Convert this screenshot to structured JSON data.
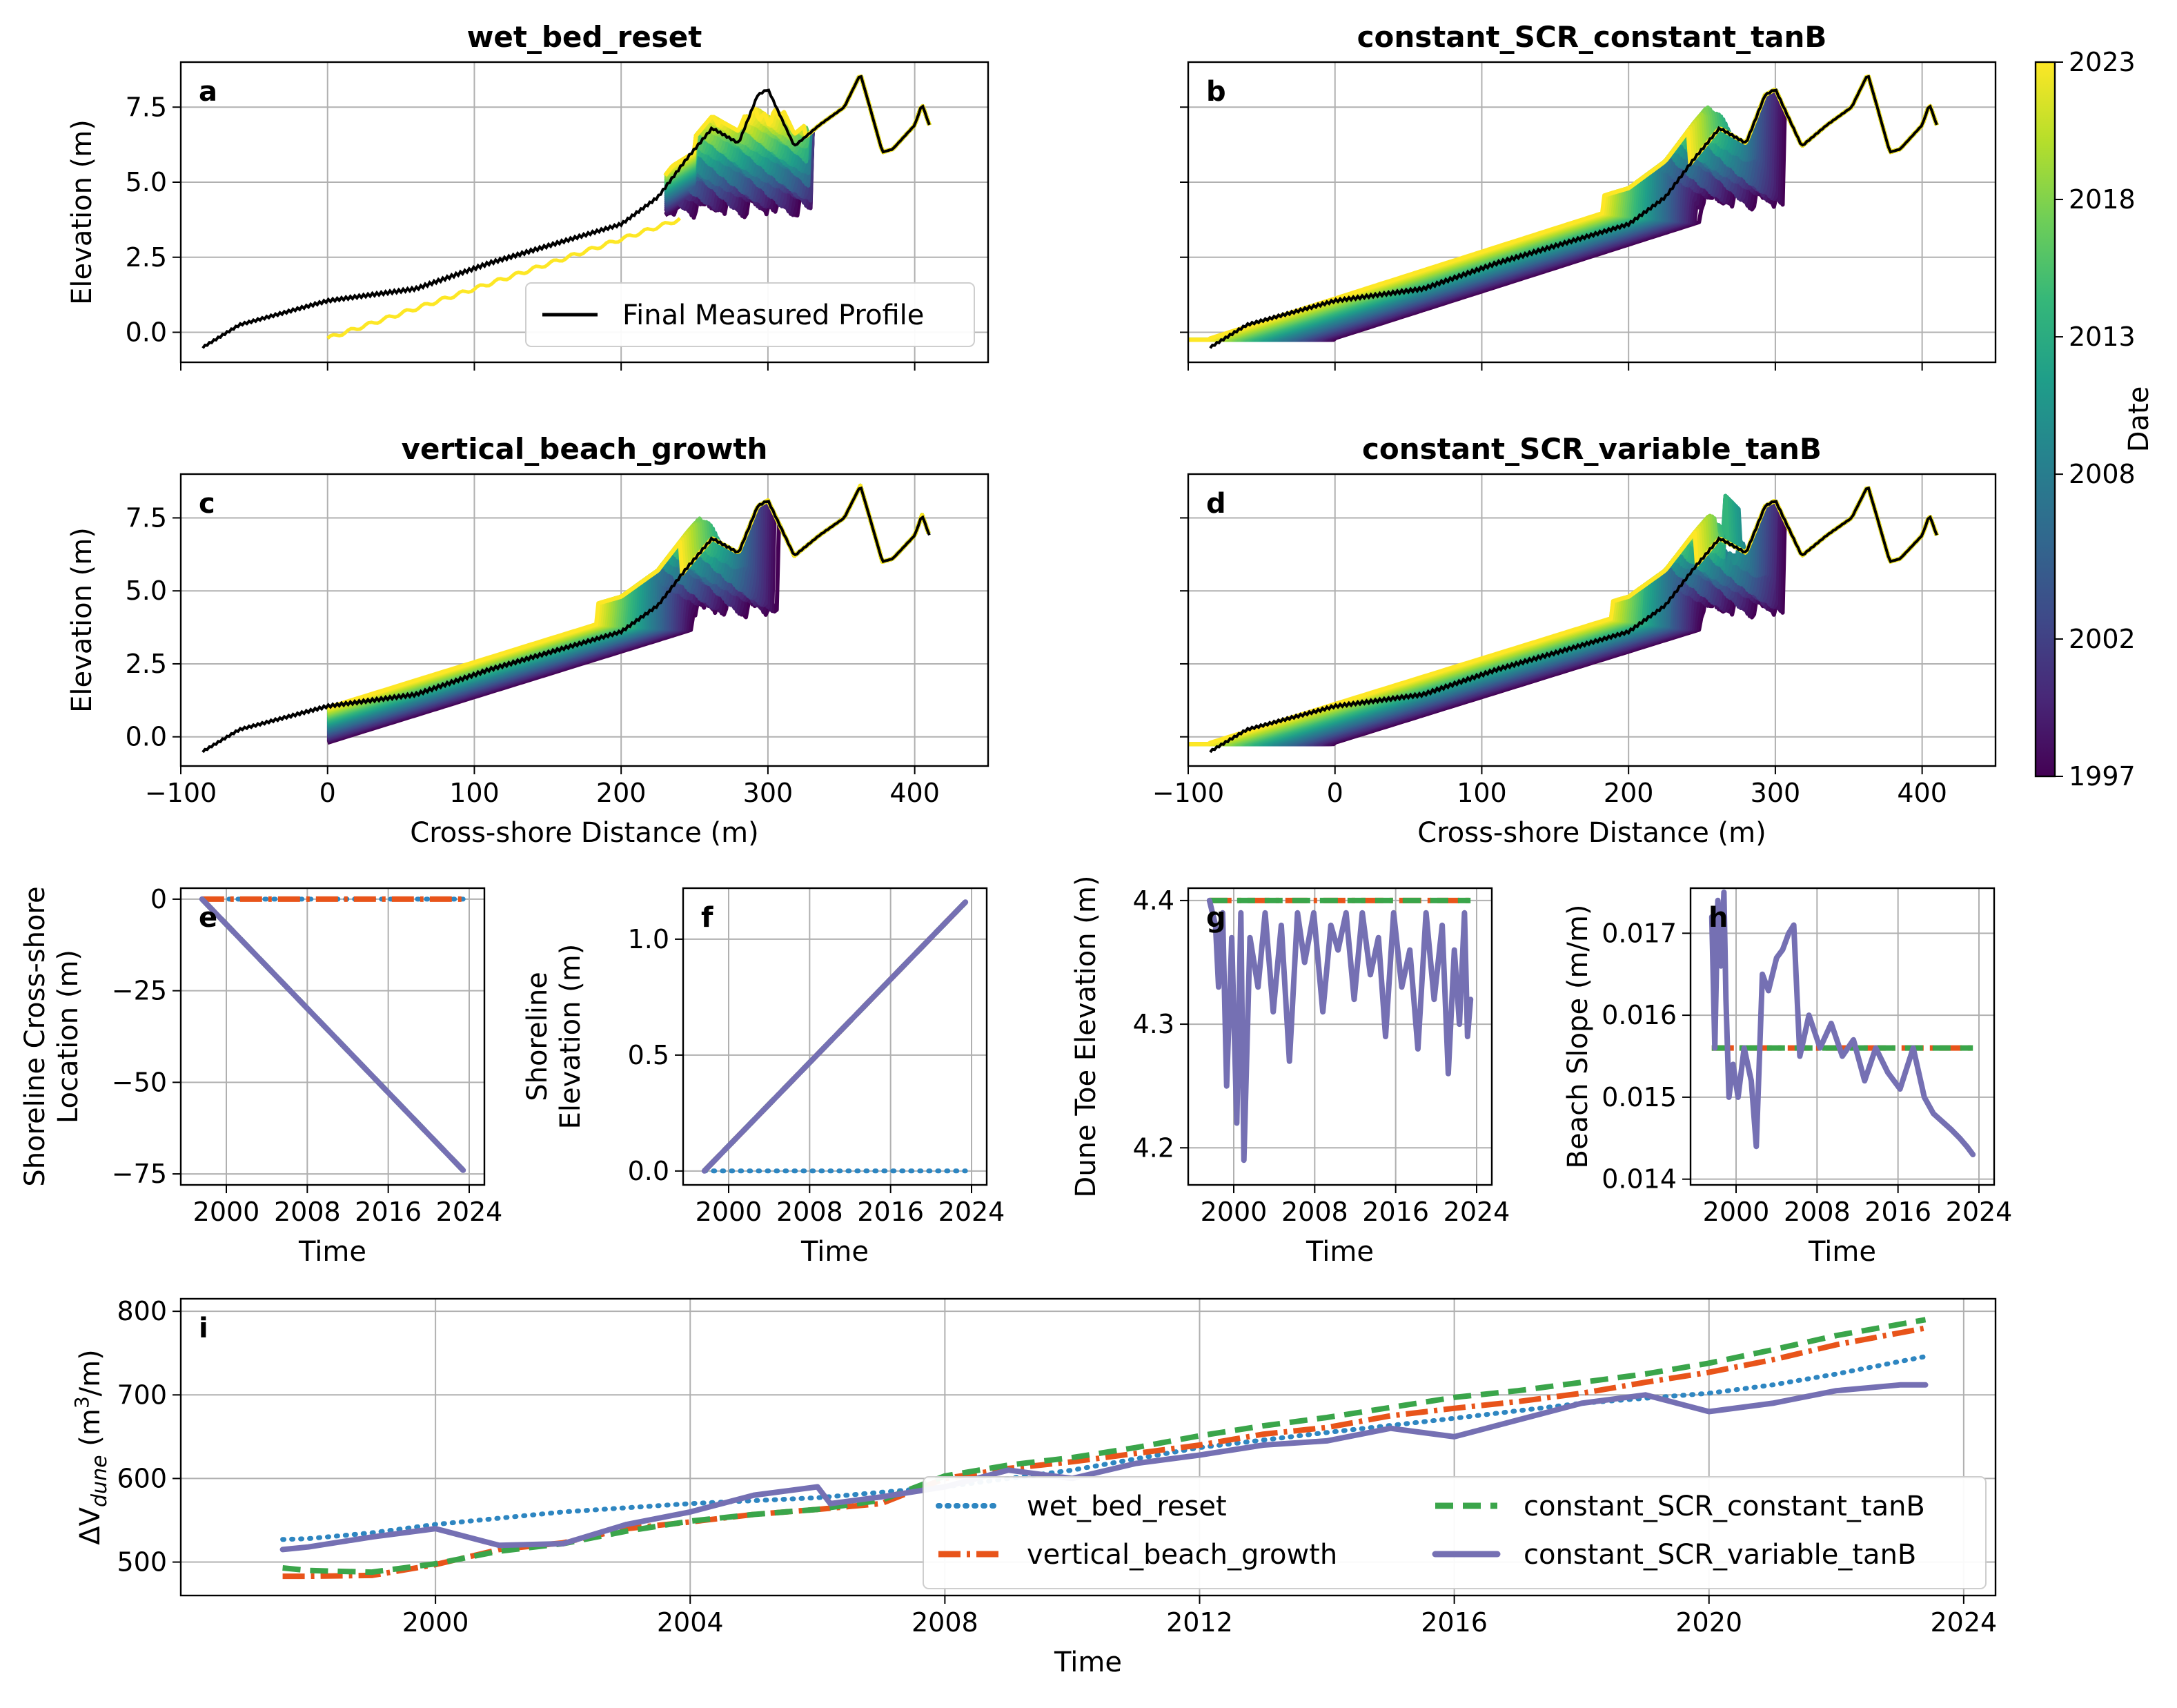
{
  "colors": {
    "wet_bed_reset": "#2e86c1",
    "vertical_beach_growth": "#e8541a",
    "constant_SCR_constant_tanB": "#3aa54a",
    "constant_SCR_variable_tanB": "#7570b3",
    "measured": "#000000",
    "viridis": [
      "#440154",
      "#482878",
      "#3e4a89",
      "#31688e",
      "#26828e",
      "#1f9e89",
      "#35b779",
      "#6ece58",
      "#b5de2b",
      "#fde725"
    ]
  },
  "colorbar": {
    "label": "Date",
    "ticks": [
      "1997",
      "2002",
      "2008",
      "2013",
      "2018",
      "2023"
    ],
    "vmin": 1997,
    "vmax": 2023
  },
  "chart_data": [
    {
      "id": "a",
      "panel_label": "a",
      "title": "wet_bed_reset",
      "type": "line",
      "xlabel": "",
      "ylabel": "Elevation (m)",
      "xlim": [
        -100,
        450
      ],
      "ylim": [
        -1.0,
        9.0
      ],
      "xticks": [
        -100,
        0,
        100,
        200,
        300,
        400
      ],
      "yticks": [
        0.0,
        2.5,
        5.0,
        7.5
      ],
      "yticklabels": [
        "0.0",
        "2.5",
        "5.0",
        "7.5"
      ],
      "show_xticklabels": false,
      "legend": [
        "Final Measured Profile"
      ],
      "legend_position": "lower right",
      "envelope": {
        "type": "wet_bed_reset"
      }
    },
    {
      "id": "b",
      "panel_label": "b",
      "title": "constant_SCR_constant_tanB",
      "type": "line",
      "xlabel": "",
      "ylabel": "",
      "xlim": [
        -100,
        450
      ],
      "ylim": [
        -1.0,
        9.0
      ],
      "xticks": [
        -100,
        0,
        100,
        200,
        300,
        400
      ],
      "yticks": [
        0.0,
        2.5,
        5.0,
        7.5
      ],
      "show_xticklabels": false,
      "show_yticklabels": false,
      "envelope": {
        "type": "constant_SCR"
      }
    },
    {
      "id": "c",
      "panel_label": "c",
      "title": "vertical_beach_growth",
      "type": "line",
      "xlabel": "Cross-shore Distance (m)",
      "ylabel": "Elevation (m)",
      "xlim": [
        -100,
        450
      ],
      "ylim": [
        -1.0,
        9.0
      ],
      "xticks": [
        -100,
        0,
        100,
        200,
        300,
        400
      ],
      "xticklabels": [
        "−100",
        "0",
        "100",
        "200",
        "300",
        "400"
      ],
      "yticks": [
        0.0,
        2.5,
        5.0,
        7.5
      ],
      "yticklabels": [
        "0.0",
        "2.5",
        "5.0",
        "7.5"
      ],
      "envelope": {
        "type": "vertical_growth"
      }
    },
    {
      "id": "d",
      "panel_label": "d",
      "title": "constant_SCR_variable_tanB",
      "type": "line",
      "xlabel": "Cross-shore Distance (m)",
      "ylabel": "",
      "xlim": [
        -100,
        450
      ],
      "ylim": [
        -1.0,
        9.0
      ],
      "xticks": [
        -100,
        0,
        100,
        200,
        300,
        400
      ],
      "xticklabels": [
        "−100",
        "0",
        "100",
        "200",
        "300",
        "400"
      ],
      "yticks": [
        0.0,
        2.5,
        5.0,
        7.5
      ],
      "show_yticklabels": false,
      "envelope": {
        "type": "constant_SCR_var"
      }
    },
    {
      "id": "e",
      "panel_label": "e",
      "type": "line",
      "xlabel": "Time",
      "ylabel": "Shoreline Cross-shore\nLocation (m)",
      "xlim": [
        1995.5,
        2025.5
      ],
      "ylim": [
        -78,
        3
      ],
      "xticks": [
        2000,
        2008,
        2016,
        2024
      ],
      "xticklabels": [
        "2000",
        "2008",
        "2016",
        "2024"
      ],
      "yticks": [
        0,
        -25,
        -50,
        -75
      ],
      "yticklabels": [
        "0",
        "−25",
        "−50",
        "−75"
      ],
      "series": [
        {
          "key": "wet_bed_reset",
          "x": [
            1997.6,
            2023.4
          ],
          "y": [
            0,
            0
          ]
        },
        {
          "key": "vertical_beach_growth",
          "x": [
            1997.6,
            2023.4
          ],
          "y": [
            0,
            0
          ]
        },
        {
          "key": "constant_SCR_constant_tanB",
          "x": [
            1997.6,
            2023.4
          ],
          "y": [
            0,
            -74
          ]
        },
        {
          "key": "constant_SCR_variable_tanB",
          "x": [
            1997.6,
            2023.4
          ],
          "y": [
            0,
            -74
          ]
        }
      ]
    },
    {
      "id": "f",
      "panel_label": "f",
      "type": "line",
      "xlabel": "Time",
      "ylabel": "Shoreline\nElevation (m)",
      "xlim": [
        1995.5,
        2025.5
      ],
      "ylim": [
        -0.06,
        1.22
      ],
      "xticks": [
        2000,
        2008,
        2016,
        2024
      ],
      "xticklabels": [
        "2000",
        "2008",
        "2016",
        "2024"
      ],
      "yticks": [
        0.0,
        0.5,
        1.0
      ],
      "yticklabels": [
        "0.0",
        "0.5",
        "1.0"
      ],
      "series": [
        {
          "key": "wet_bed_reset",
          "x": [
            1997.6,
            2023.4
          ],
          "y": [
            0,
            0
          ]
        },
        {
          "key": "vertical_beach_growth",
          "x": [
            1997.6,
            2023.4
          ],
          "y": [
            0,
            1.16
          ]
        },
        {
          "key": "constant_SCR_constant_tanB",
          "x": [
            1997.6,
            2023.4
          ],
          "y": [
            0,
            1.16
          ]
        },
        {
          "key": "constant_SCR_variable_tanB",
          "x": [
            1997.6,
            2023.4
          ],
          "y": [
            0,
            1.16
          ]
        }
      ]
    },
    {
      "id": "g",
      "panel_label": "g",
      "type": "line",
      "xlabel": "Time",
      "ylabel": "Dune Toe Elevation (m)",
      "xlim": [
        1995.5,
        2025.5
      ],
      "ylim": [
        4.17,
        4.41
      ],
      "xticks": [
        2000,
        2008,
        2016,
        2024
      ],
      "xticklabels": [
        "2000",
        "2008",
        "2016",
        "2024"
      ],
      "yticks": [
        4.2,
        4.3,
        4.4
      ],
      "yticklabels": [
        "4.2",
        "4.3",
        "4.4"
      ],
      "series": [
        {
          "key": "vertical_beach_growth",
          "x": [
            1997.6,
            2023.4
          ],
          "y": [
            4.4,
            4.4
          ]
        },
        {
          "key": "constant_SCR_constant_tanB",
          "x": [
            1997.6,
            2023.4
          ],
          "y": [
            4.4,
            4.4
          ]
        },
        {
          "key": "constant_SCR_variable_tanB",
          "x": [
            1997.6,
            1998.2,
            1998.5,
            1998.9,
            1999.3,
            1999.8,
            2000.3,
            2000.7,
            2001.0,
            2001.6,
            2002.4,
            2003.1,
            2003.9,
            2004.7,
            2005.5,
            2006.3,
            2007.0,
            2007.9,
            2008.8,
            2009.6,
            2010.3,
            2011.1,
            2011.9,
            2012.7,
            2013.5,
            2014.3,
            2015.0,
            2015.8,
            2016.6,
            2017.4,
            2018.2,
            2019.0,
            2019.8,
            2020.6,
            2021.2,
            2021.8,
            2022.3,
            2022.8,
            2023.1,
            2023.4
          ],
          "y": [
            4.4,
            4.38,
            4.33,
            4.39,
            4.25,
            4.37,
            4.22,
            4.39,
            4.19,
            4.37,
            4.33,
            4.39,
            4.31,
            4.38,
            4.27,
            4.39,
            4.35,
            4.39,
            4.31,
            4.38,
            4.36,
            4.39,
            4.32,
            4.39,
            4.34,
            4.37,
            4.29,
            4.39,
            4.33,
            4.36,
            4.28,
            4.39,
            4.32,
            4.38,
            4.26,
            4.36,
            4.3,
            4.39,
            4.29,
            4.32
          ]
        }
      ]
    },
    {
      "id": "h",
      "panel_label": "h",
      "type": "line",
      "xlabel": "Time",
      "ylabel": "Beach Slope (m/m)",
      "xlim": [
        1995.5,
        2025.5
      ],
      "ylim": [
        0.01393,
        0.01755
      ],
      "xticks": [
        2000,
        2008,
        2016,
        2024
      ],
      "xticklabels": [
        "2000",
        "2008",
        "2016",
        "2024"
      ],
      "yticks": [
        0.014,
        0.015,
        0.016,
        0.017
      ],
      "yticklabels": [
        "0.014",
        "0.015",
        "0.016",
        "0.017"
      ],
      "series": [
        {
          "key": "vertical_beach_growth",
          "x": [
            1997.6,
            2023.4
          ],
          "y": [
            0.0156,
            0.0156
          ]
        },
        {
          "key": "constant_SCR_constant_tanB",
          "x": [
            1997.6,
            2023.4
          ],
          "y": [
            0.0156,
            0.0156
          ]
        },
        {
          "key": "constant_SCR_variable_tanB",
          "x": [
            1997.6,
            1997.9,
            1998.2,
            1998.5,
            1998.8,
            1999.0,
            1999.3,
            1999.7,
            2000.2,
            2000.8,
            2001.5,
            2002.0,
            2002.6,
            2003.2,
            2004.0,
            2004.6,
            2005.2,
            2005.7,
            2006.0,
            2006.3,
            2007.2,
            2008.3,
            2009.4,
            2010.5,
            2011.6,
            2012.7,
            2013.8,
            2015.0,
            2016.2,
            2017.5,
            2018.6,
            2019.5,
            2020.4,
            2021.3,
            2022.1,
            2022.8,
            2023.4
          ],
          "y": [
            0.0172,
            0.0156,
            0.0174,
            0.0166,
            0.0175,
            0.0162,
            0.015,
            0.0154,
            0.015,
            0.0156,
            0.0152,
            0.0144,
            0.0165,
            0.0163,
            0.0167,
            0.0168,
            0.017,
            0.0171,
            0.0163,
            0.0155,
            0.016,
            0.0156,
            0.0159,
            0.0155,
            0.0157,
            0.0152,
            0.0156,
            0.0153,
            0.0151,
            0.0156,
            0.015,
            0.0148,
            0.0147,
            0.0146,
            0.0145,
            0.0144,
            0.0143
          ]
        }
      ]
    },
    {
      "id": "i",
      "panel_label": "i",
      "type": "line",
      "xlabel": "Time",
      "ylabel": "ΔV",
      "ylabel_sub": "dune",
      "ylabel_unit": " (m",
      "ylabel_exp": "3",
      "ylabel_tail": "/m)",
      "xlim": [
        1996.0,
        2024.5
      ],
      "ylim": [
        460,
        815
      ],
      "xticks": [
        2000,
        2004,
        2008,
        2012,
        2016,
        2020,
        2024
      ],
      "xticklabels": [
        "2000",
        "2004",
        "2008",
        "2012",
        "2016",
        "2020",
        "2024"
      ],
      "yticks": [
        500,
        600,
        700,
        800
      ],
      "yticklabels": [
        "500",
        "600",
        "700",
        "800"
      ],
      "legend": [
        "wet_bed_reset",
        "vertical_beach_growth",
        "constant_SCR_constant_tanB",
        "constant_SCR_variable_tanB"
      ],
      "legend_position": "lower right",
      "series": [
        {
          "key": "wet_bed_reset",
          "name": "wet_bed_reset",
          "x": [
            1997.6,
            1998.0,
            1999.0,
            2000.0,
            2002.0,
            2004.0,
            2006.0,
            2008.0,
            2010.0,
            2012.0,
            2014.0,
            2016.0,
            2018.0,
            2020.0,
            2021.0,
            2022.0,
            2023.4
          ],
          "y": [
            527,
            528,
            535,
            545,
            560,
            570,
            577,
            590,
            610,
            637,
            655,
            672,
            690,
            702,
            712,
            725,
            746
          ]
        },
        {
          "key": "vertical_beach_growth",
          "name": "vertical_beach_growth",
          "x": [
            1997.6,
            1998.0,
            1999.0,
            2000.0,
            2001.0,
            2002.0,
            2003.0,
            2004.0,
            2005.0,
            2006.0,
            2007.0,
            2008.0,
            2009.0,
            2010.0,
            2011.0,
            2012.0,
            2013.0,
            2014.0,
            2015.0,
            2016.0,
            2017.0,
            2018.0,
            2019.0,
            2020.0,
            2021.0,
            2022.0,
            2023.4
          ],
          "y": [
            483,
            483,
            484,
            497,
            515,
            523,
            540,
            548,
            557,
            563,
            570,
            600,
            612,
            620,
            630,
            640,
            653,
            661,
            675,
            684,
            692,
            702,
            715,
            727,
            742,
            760,
            780
          ]
        },
        {
          "key": "constant_SCR_constant_tanB",
          "name": "constant_SCR_constant_tanB",
          "x": [
            1997.6,
            1998.0,
            1999.0,
            2000.0,
            2001.0,
            2002.0,
            2003.0,
            2004.0,
            2005.0,
            2006.0,
            2007.0,
            2008.0,
            2009.0,
            2010.0,
            2011.0,
            2012.0,
            2013.0,
            2014.0,
            2015.0,
            2016.0,
            2017.0,
            2018.0,
            2019.0,
            2020.0,
            2021.0,
            2022.0,
            2023.4
          ],
          "y": [
            493,
            490,
            488,
            498,
            513,
            522,
            537,
            549,
            557,
            563,
            574,
            603,
            616,
            625,
            637,
            651,
            663,
            673,
            685,
            697,
            705,
            715,
            725,
            738,
            754,
            771,
            790
          ]
        },
        {
          "key": "constant_SCR_variable_tanB",
          "name": "constant_SCR_variable_tanB",
          "x": [
            1997.6,
            1998.0,
            1999.0,
            2000.0,
            2001.0,
            2002.0,
            2003.0,
            2004.0,
            2005.0,
            2006.0,
            2006.2,
            2007.0,
            2008.0,
            2009.0,
            2010.0,
            2011.0,
            2012.0,
            2013.0,
            2014.0,
            2015.0,
            2016.0,
            2017.0,
            2018.0,
            2019.0,
            2020.0,
            2021.0,
            2022.0,
            2023.0,
            2023.4
          ],
          "y": [
            515,
            518,
            530,
            540,
            520,
            522,
            545,
            560,
            580,
            590,
            570,
            578,
            590,
            610,
            600,
            618,
            628,
            640,
            645,
            660,
            650,
            670,
            690,
            700,
            680,
            690,
            705,
            712,
            712
          ]
        }
      ]
    }
  ]
}
